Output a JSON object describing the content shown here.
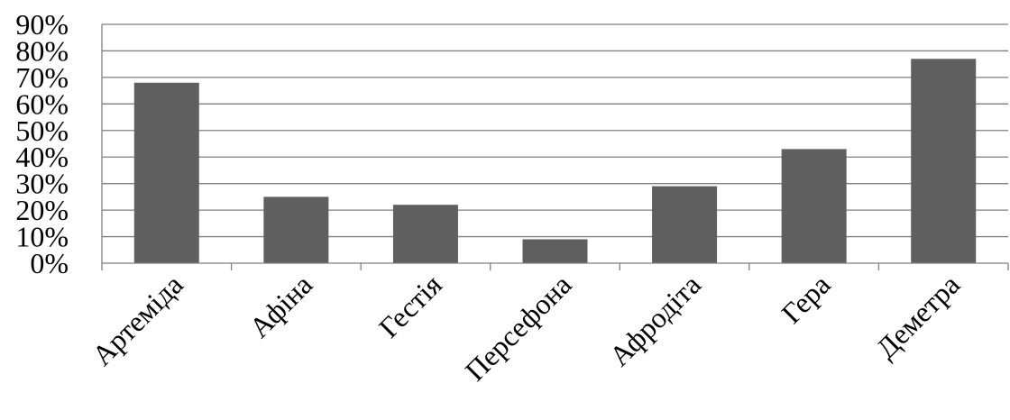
{
  "chart_data": {
    "type": "bar",
    "categories": [
      "Артеміда",
      "Афіна",
      "Гестія",
      "Персефона",
      "Афродіта",
      "Гера",
      "Деметра"
    ],
    "values": [
      68,
      25,
      22,
      9,
      29,
      43,
      77
    ],
    "value_unit": "%",
    "ylim": [
      0,
      90
    ],
    "y_ticks": [
      "0%",
      "10%",
      "20%",
      "30%",
      "40%",
      "50%",
      "60%",
      "70%",
      "80%",
      "90%"
    ],
    "title": "",
    "xlabel": "",
    "ylabel": "",
    "grid": "horizontal",
    "legend": "none",
    "bar_color": "#5f5f5f",
    "grid_color": "#7f7f7f",
    "axis_color": "#7f7f7f"
  }
}
